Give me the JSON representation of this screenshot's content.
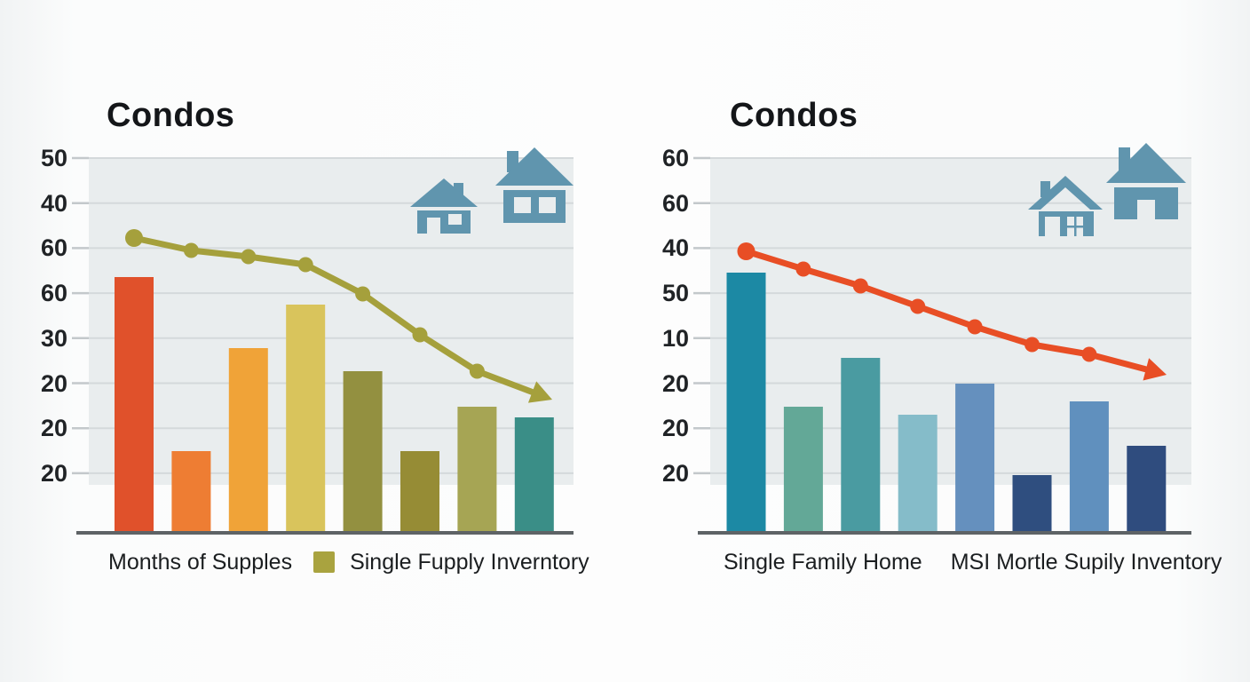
{
  "colors": {
    "page_bg": "#F8F9F9",
    "plot_bg": "#E9EDEE",
    "grid": "#D4D9DB",
    "tick": "#C3C8CB",
    "baseline": "#5E6366",
    "text": "#17191B"
  },
  "panels": [
    {
      "title": "Condos",
      "y_axis_labels": [
        "50",
        "40",
        "60",
        "60",
        "30",
        "20",
        "20",
        "20"
      ],
      "legend": [
        {
          "label": "Months of Supples",
          "swatch": null
        },
        {
          "label": "Single Fupply Inverntory",
          "swatch": "#A9A33F"
        }
      ],
      "house_icon_color": "#6095AE"
    },
    {
      "title": "Condos",
      "y_axis_labels": [
        "60",
        "60",
        "40",
        "50",
        "10",
        "20",
        "20",
        "20"
      ],
      "legend": [
        {
          "label": "Single Family Home",
          "swatch": null
        },
        {
          "label": "MSI Mortle Supily Inventory",
          "swatch": null
        }
      ],
      "house_icon_color": "#6095AE"
    }
  ],
  "chart_data": [
    {
      "type": "bar+line",
      "title": "Condos",
      "y_tick_labels": [
        "50",
        "40",
        "60",
        "60",
        "30",
        "20",
        "20",
        "20"
      ],
      "legend_entries": [
        "Months of Supples",
        "Single Fupply Inverntory"
      ],
      "legend_position": "bottom",
      "grid": true,
      "ylim": [
        0,
        84
      ],
      "bars": {
        "values": [
          57.6,
          18.4,
          41.6,
          51.4,
          36.4,
          18.4,
          28.4,
          26
        ],
        "colors": [
          "#E0512B",
          "#EE7D33",
          "#F0A338",
          "#D9C45C",
          "#939040",
          "#968C35",
          "#A6A554",
          "#3A8E87"
        ]
      },
      "line": {
        "name": "Single Fupply Inverntory",
        "color": "#A5A03C",
        "values": [
          66.4,
          63.6,
          62.2,
          60.4,
          53.8,
          44.6,
          36.4
        ],
        "arrow_end_value": 30
      }
    },
    {
      "type": "bar+line",
      "title": "Condos",
      "y_tick_labels": [
        "60",
        "60",
        "40",
        "50",
        "10",
        "20",
        "20",
        "20"
      ],
      "legend_entries": [
        "Single Family Home",
        "MSI Mortle Supily Inventory"
      ],
      "legend_position": "bottom",
      "grid": true,
      "ylim": [
        0,
        84
      ],
      "bars": {
        "values": [
          58.6,
          28.4,
          39.4,
          26.6,
          33.6,
          13,
          29.6,
          19.6
        ],
        "colors": [
          "#1C89A4",
          "#63A897",
          "#4A9BA1",
          "#85BCC9",
          "#6590BE",
          "#2F4E7F",
          "#6090BE",
          "#2F4C7E"
        ]
      },
      "line": {
        "name": "MSI Mortle Supily Inventory",
        "color": "#E84E25",
        "values": [
          63.4,
          59.4,
          55.6,
          51,
          46.4,
          42.4,
          40.2
        ],
        "arrow_end_value": 35.6
      }
    }
  ]
}
